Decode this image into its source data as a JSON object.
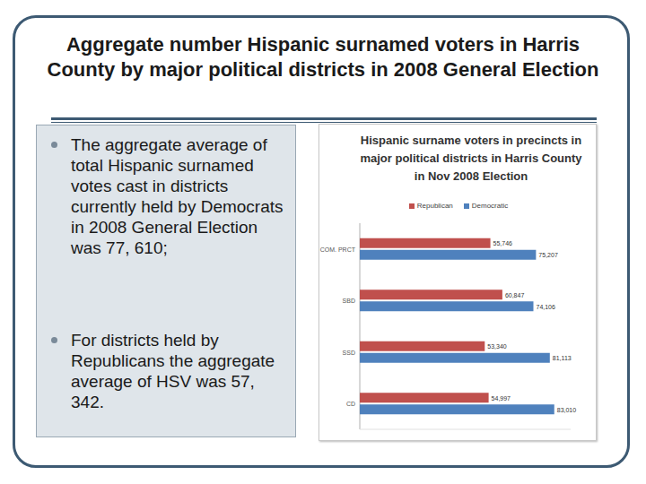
{
  "slide": {
    "title": "Aggregate number Hispanic surnamed voters in Harris County by major political districts in 2008 General Election",
    "bullets": [
      "The aggregate average of total Hispanic surnamed votes cast in districts currently held by Democrats in 2008 General Election was 77, 610;",
      "For districts held by Republicans the aggregate average of HSV was 57, 342."
    ]
  },
  "chart_data": {
    "type": "bar",
    "orientation": "horizontal",
    "title": "Hispanic surname voters in precincts in major political districts in Harris County in Nov 2008 Election",
    "categories": [
      "COM. PRCT",
      "SBD",
      "SSD",
      "CD"
    ],
    "series": [
      {
        "name": "Republican",
        "color": "#c0504d",
        "values": [
          55746,
          60847,
          53340,
          54997
        ],
        "value_labels": [
          "55,746",
          "60,847",
          "53,340",
          "54,997"
        ]
      },
      {
        "name": "Democratic",
        "color": "#4f81bd",
        "values": [
          75207,
          74106,
          81113,
          83010
        ],
        "value_labels": [
          "75,207",
          "74,106",
          "81,113",
          "83,010"
        ]
      }
    ],
    "xlim": [
      0,
      90000
    ],
    "xticks": [],
    "legend": "top",
    "data_labels": true,
    "tick_labels": "y",
    "grid": false
  }
}
